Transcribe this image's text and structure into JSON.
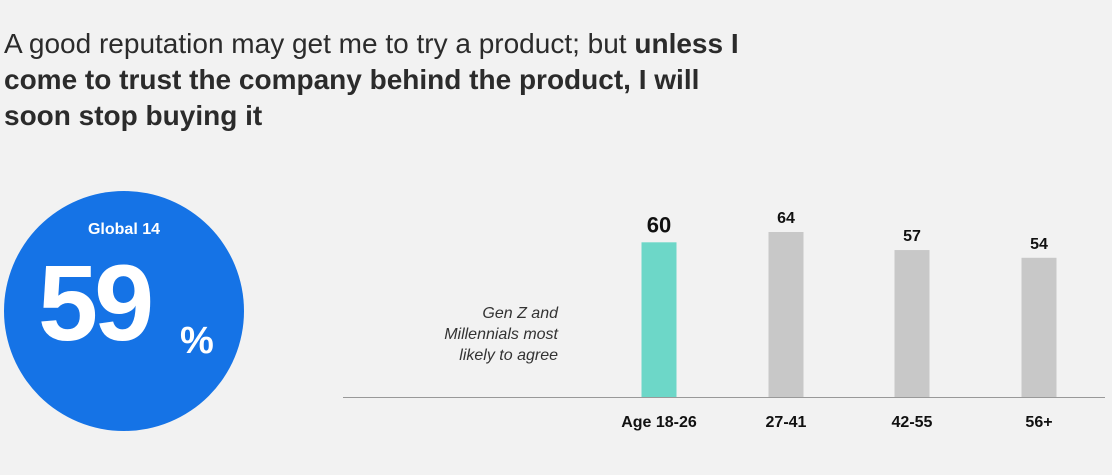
{
  "headline": {
    "regular": "A good reputation may get me to try a product; but",
    "bold": "unless I come to trust the company behind the product, I will soon stop buying it"
  },
  "global": {
    "label": "Global 14",
    "value": "59",
    "unit": "%"
  },
  "annotation": {
    "line1": "Gen Z and",
    "line2": "Millennials most",
    "line3": "likely to agree"
  },
  "colors": {
    "background": "#f2f2f2",
    "circle": "#1573e6",
    "highlight_bar": "#6dd7c8",
    "bar": "#c8c8c8",
    "axis": "#999999"
  },
  "chart_data": {
    "type": "bar",
    "title": "",
    "xlabel": "",
    "ylabel": "",
    "categories": [
      "Age 18-26",
      "27-41",
      "42-55",
      "56+"
    ],
    "values": [
      60,
      64,
      57,
      54
    ],
    "value_labels": [
      "60",
      "64",
      "57",
      "54"
    ],
    "highlighted": [
      true,
      false,
      false,
      false
    ],
    "ylim": [
      0,
      64
    ],
    "grid": false,
    "legend": "none"
  }
}
